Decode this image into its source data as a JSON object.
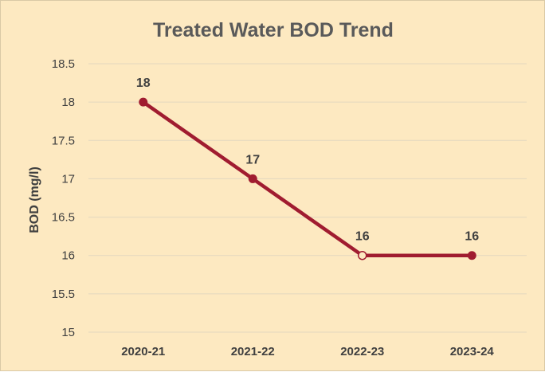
{
  "chart_data": {
    "type": "line",
    "title": "Treated Water BOD Trend",
    "xlabel": "",
    "ylabel": "BOD (mg/l)",
    "categories": [
      "2020-21",
      "2021-22",
      "2022-23",
      "2023-24"
    ],
    "values": [
      18,
      17,
      16,
      16
    ],
    "data_labels": [
      "18",
      "17",
      "16",
      "16"
    ],
    "ylim": [
      15,
      18.5
    ],
    "yticks": [
      "15",
      "15.5",
      "16",
      "16.5",
      "17",
      "17.5",
      "18",
      "18.5"
    ],
    "ytick_values": [
      15,
      15.5,
      16,
      16.5,
      17,
      17.5,
      18,
      18.5
    ],
    "grid": true,
    "legend": "none",
    "line_color": "#a01c30",
    "background_color": "#fde9c1",
    "open_markers": [
      2
    ]
  }
}
